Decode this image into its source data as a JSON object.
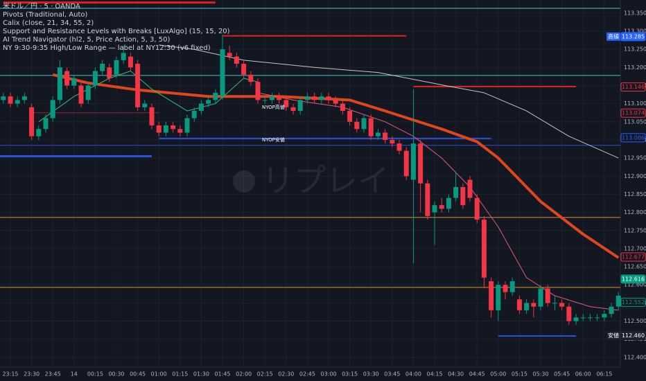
{
  "chart_data": {
    "type": "candlestick",
    "legend": [
      "米ドル／円 · 5 · OANDA",
      "Pivots (Traditional, Auto)",
      "Calix (close, 21, 34, 55, 2)",
      "Support and Resistance Levels with Breaks [LuxAlgo] (15, 15, 20)",
      "AI Trend Navigator (hl2, 5, Price Action, 5, 3, 50)",
      "NY 9:30-9:35 High/Low Range — label at NY12:30 (v6 fixed)"
    ],
    "watermark": "リプレイ",
    "up_color": "#089981",
    "down_color": "#f23645",
    "xlim": [
      -0.47,
      87.27
    ],
    "ylim": [
      112.373,
      113.386
    ],
    "grid": true,
    "xticks": [
      {
        "value": 1,
        "label": "23:15"
      },
      {
        "value": 4,
        "label": "23:30"
      },
      {
        "value": 7,
        "label": "23:45"
      },
      {
        "value": 10,
        "label": "14"
      },
      {
        "value": 13,
        "label": "00:15"
      },
      {
        "value": 16,
        "label": "00:30"
      },
      {
        "value": 19,
        "label": "00:45"
      },
      {
        "value": 22,
        "label": "01:00"
      },
      {
        "value": 25,
        "label": "01:15"
      },
      {
        "value": 28,
        "label": "01:30"
      },
      {
        "value": 31,
        "label": "01:45"
      },
      {
        "value": 34,
        "label": "02:00"
      },
      {
        "value": 37,
        "label": "02:15"
      },
      {
        "value": 40,
        "label": "02:30"
      },
      {
        "value": 43,
        "label": "02:45"
      },
      {
        "value": 46,
        "label": "03:00"
      },
      {
        "value": 49,
        "label": "03:15"
      },
      {
        "value": 52,
        "label": "03:30"
      },
      {
        "value": 55,
        "label": "03:45"
      },
      {
        "value": 58,
        "label": "04:00"
      },
      {
        "value": 61,
        "label": "04:15"
      },
      {
        "value": 64,
        "label": "04:30"
      },
      {
        "value": 67,
        "label": "04:45"
      },
      {
        "value": 70,
        "label": "05:00"
      },
      {
        "value": 73,
        "label": "05:15"
      },
      {
        "value": 76,
        "label": "05:30"
      },
      {
        "value": 79,
        "label": "05:45"
      },
      {
        "value": 82,
        "label": "06:00"
      },
      {
        "value": 85,
        "label": "06:15"
      }
    ],
    "yticks": [
      {
        "value": 113.35,
        "label": "113.350"
      },
      {
        "value": 113.3,
        "label": "113.300"
      },
      {
        "value": 113.25,
        "label": "113.250"
      },
      {
        "value": 113.2,
        "label": "113.200"
      },
      {
        "value": 113.15,
        "label": "113.150"
      },
      {
        "value": 113.1,
        "label": "113.100"
      },
      {
        "value": 113.05,
        "label": "113.050"
      },
      {
        "value": 113,
        "label": "113.000"
      },
      {
        "value": 112.95,
        "label": "112.950"
      },
      {
        "value": 112.9,
        "label": "112.900"
      },
      {
        "value": 112.85,
        "label": "112.850"
      },
      {
        "value": 112.8,
        "label": "112.800"
      },
      {
        "value": 112.75,
        "label": "112.750"
      },
      {
        "value": 112.7,
        "label": "112.700"
      },
      {
        "value": 112.65,
        "label": "112.650"
      },
      {
        "value": 112.6,
        "label": "112.600"
      },
      {
        "value": 112.55,
        "label": "112.550"
      },
      {
        "value": 112.5,
        "label": "112.500"
      },
      {
        "value": 112.45,
        "label": "112.450"
      },
      {
        "value": 112.4,
        "label": "112.400"
      }
    ],
    "open": [
      113.11,
      113.12,
      113.1,
      113.11,
      113.09,
      113.01,
      113.03,
      113.06,
      113.11,
      113.19,
      113.15,
      113.15,
      113.11,
      113.15,
      113.19,
      113.2,
      113.18,
      113.22,
      113.23,
      113.21,
      113.09,
      113.09,
      113.04,
      113.02,
      113.04,
      113.03,
      113.02,
      113.06,
      113.08,
      113.1,
      113.11,
      113.12,
      113.24,
      113.23,
      113.21,
      113.18,
      113.16,
      113.11,
      113.11,
      113.12,
      113.11,
      113.09,
      113.08,
      113.11,
      113.12,
      113.11,
      113.12,
      113.11,
      113.1,
      113.08,
      113.05,
      113.03,
      113.06,
      113.01,
      113.02,
      113.0,
      112.99,
      112.97,
      112.89,
      112.99,
      112.88,
      112.8,
      112.82,
      112.81,
      112.84,
      112.87,
      112.89,
      112.84,
      112.78,
      112.61,
      112.53,
      112.6,
      112.58,
      112.56,
      112.53,
      112.55,
      112.54,
      112.59,
      112.55,
      112.55,
      112.54,
      112.5,
      112.51,
      112.51,
      112.51,
      112.51,
      112.52,
      112.54
    ],
    "high": [
      113.13,
      113.13,
      113.12,
      113.13,
      113.1,
      113.04,
      113.07,
      113.12,
      113.22,
      113.2,
      113.18,
      113.16,
      113.16,
      113.2,
      113.22,
      113.21,
      113.23,
      113.26,
      113.24,
      113.22,
      113.11,
      113.1,
      113.05,
      113.05,
      113.05,
      113.04,
      113.07,
      113.09,
      113.11,
      113.12,
      113.14,
      113.29,
      113.26,
      113.24,
      113.22,
      113.19,
      113.17,
      113.12,
      113.13,
      113.13,
      113.12,
      113.1,
      113.12,
      113.13,
      113.13,
      113.13,
      113.13,
      113.12,
      113.11,
      113.09,
      113.06,
      113.07,
      113.07,
      113.03,
      113.03,
      113.01,
      113.0,
      112.98,
      113.14,
      113.0,
      112.89,
      112.83,
      112.84,
      112.85,
      112.91,
      112.88,
      112.9,
      112.85,
      112.79,
      112.62,
      112.61,
      112.61,
      112.62,
      112.57,
      112.56,
      112.56,
      112.6,
      112.6,
      112.57,
      112.56,
      112.55,
      112.52,
      112.52,
      112.52,
      112.52,
      112.53,
      112.55,
      112.58
    ],
    "low": [
      113.1,
      113.09,
      113.09,
      113.1,
      113.0,
      113.0,
      113.02,
      113.05,
      113.1,
      113.14,
      113.14,
      113.09,
      113.1,
      113.14,
      113.18,
      113.16,
      113.17,
      113.21,
      113.19,
      113.08,
      113.08,
      113.03,
      113.01,
      113.01,
      113.02,
      113.01,
      113.01,
      113.05,
      113.07,
      113.09,
      113.1,
      113.11,
      113.22,
      113.2,
      113.17,
      113.15,
      113.1,
      113.1,
      113.1,
      113.1,
      113.08,
      113.07,
      113.07,
      113.1,
      113.1,
      113.1,
      113.1,
      113.09,
      113.07,
      113.04,
      113.02,
      113.02,
      113.0,
      113.0,
      112.99,
      112.98,
      112.96,
      112.89,
      112.66,
      112.8,
      112.78,
      112.71,
      112.8,
      112.8,
      112.83,
      112.81,
      112.83,
      112.77,
      112.59,
      112.51,
      112.5,
      112.56,
      112.57,
      112.52,
      112.52,
      112.51,
      112.53,
      112.54,
      112.53,
      112.53,
      112.49,
      112.49,
      112.5,
      112.5,
      112.5,
      112.5,
      112.51,
      112.53
    ],
    "close": [
      113.12,
      113.1,
      113.11,
      113.12,
      113.01,
      113.03,
      113.06,
      113.11,
      113.2,
      113.15,
      113.17,
      113.1,
      113.15,
      113.19,
      113.21,
      113.17,
      113.22,
      113.24,
      113.2,
      113.09,
      113.1,
      113.04,
      113.02,
      113.04,
      113.03,
      113.02,
      113.06,
      113.08,
      113.1,
      113.11,
      113.13,
      113.25,
      113.23,
      113.21,
      113.18,
      113.16,
      113.11,
      113.11,
      113.12,
      113.11,
      113.09,
      113.08,
      113.11,
      113.12,
      113.11,
      113.12,
      113.11,
      113.1,
      113.08,
      113.05,
      113.03,
      113.06,
      113.01,
      113.02,
      113.0,
      112.99,
      112.97,
      112.9,
      112.99,
      112.88,
      112.79,
      112.82,
      112.81,
      112.84,
      112.87,
      112.82,
      112.84,
      112.78,
      112.62,
      112.53,
      112.6,
      112.58,
      112.61,
      112.53,
      112.55,
      112.54,
      112.59,
      112.55,
      112.55,
      112.54,
      112.5,
      112.51,
      112.51,
      112.51,
      112.51,
      112.52,
      112.54,
      112.57
    ],
    "lines": [
      {
        "color": "#e0461e",
        "width": 4,
        "x": [
          7,
          12,
          19,
          29,
          39,
          49,
          54,
          62,
          67,
          70,
          76,
          82,
          87
        ],
        "values": [
          113.18,
          113.157,
          113.138,
          113.12,
          113.12,
          113.11,
          113.08,
          113.03,
          112.995,
          112.95,
          112.83,
          112.74,
          112.675
        ]
      },
      {
        "color": "#c8c8c8",
        "width": 1,
        "x": [
          22,
          27,
          34,
          44,
          53,
          63,
          68,
          74,
          80,
          87
        ],
        "values": [
          113.262,
          113.25,
          113.22,
          113.2,
          113.186,
          113.148,
          113.13,
          113.08,
          113.01,
          112.95
        ]
      },
      {
        "color": "#e8587a",
        "width": 1,
        "x": [
          36,
          41,
          48,
          54,
          58,
          62,
          66,
          70,
          74,
          78,
          83,
          87
        ],
        "values": [
          113.13,
          113.11,
          113.09,
          113.05,
          113.01,
          112.95,
          112.87,
          112.76,
          112.62,
          112.57,
          112.54,
          112.53
        ]
      },
      {
        "color": "#2fbf71",
        "width": 1,
        "x": [
          5,
          10,
          15,
          18,
          21,
          26,
          30,
          34,
          36
        ],
        "values": [
          113.05,
          113.12,
          113.17,
          113.19,
          113.14,
          113.08,
          113.1,
          113.17,
          113.16
        ]
      }
    ],
    "levels": [
      {
        "value": 113.379,
        "from": 0,
        "to": 30,
        "color": "#e0201e",
        "width": 3
      },
      {
        "value": 113.363,
        "from": -1,
        "to": 88,
        "color": "#4fc3c7",
        "width": 1
      },
      {
        "value": 113.287,
        "from": 31,
        "to": 57,
        "color": "#e0201e",
        "width": 2
      },
      {
        "value": 113.178,
        "from": -1,
        "to": 88,
        "color": "#4fc3c7",
        "width": 1
      },
      {
        "value": 113.147,
        "from": 58,
        "to": 81,
        "color": "#e0201e",
        "width": 2
      },
      {
        "value": 113.075,
        "from": 4,
        "to": 22,
        "color": "#8a2a33",
        "width": 1
      },
      {
        "value": 113.004,
        "from": 22,
        "to": 69,
        "color": "#2e4fd8",
        "width": 2
      },
      {
        "value": 112.985,
        "from": -1,
        "to": 88,
        "color": "#2e4fd8",
        "width": 1
      },
      {
        "value": 112.955,
        "from": -1,
        "to": 21,
        "color": "#2e4fd8",
        "width": 3
      },
      {
        "value": 112.786,
        "from": -1,
        "to": 88,
        "color": "#e0902e",
        "width": 1
      },
      {
        "value": 112.593,
        "from": -1,
        "to": 88,
        "color": "#e0902e",
        "width": 1
      },
      {
        "value": 112.459,
        "from": 70,
        "to": 81,
        "color": "#2e4fd8",
        "width": 2
      }
    ],
    "annotations": [
      {
        "text": "NYOP高値",
        "x": 36,
        "value": 113.09
      },
      {
        "text": "NYOP安値",
        "x": 36,
        "value": 113.0
      }
    ],
    "price_labels": [
      {
        "value": 113.285,
        "label": "113.285",
        "tag": "高値",
        "color": "#2962ff",
        "filled": true
      },
      {
        "value": 113.146,
        "label": "113.146",
        "color": "#f23645",
        "filled": false
      },
      {
        "value": 113.074,
        "label": "113.074",
        "color": "#f23645",
        "filled": false
      },
      {
        "value": 113.006,
        "label": "113.006",
        "color": "#2962ff",
        "filled": false
      },
      {
        "value": 112.677,
        "label": "112.677",
        "color": "#f23645",
        "filled": false
      },
      {
        "value": 112.616,
        "label": "112.616",
        "color": "#089981",
        "filled": true
      },
      {
        "value": 112.552,
        "label": "112.552",
        "color": "#089981",
        "filled": false
      },
      {
        "value": 112.46,
        "label": "112.460",
        "color": "#2962ff",
        "filled": false
      },
      {
        "value": 112.46,
        "label": "112.460",
        "tag": "安値",
        "color": "#1e222d",
        "filled": true
      }
    ]
  }
}
